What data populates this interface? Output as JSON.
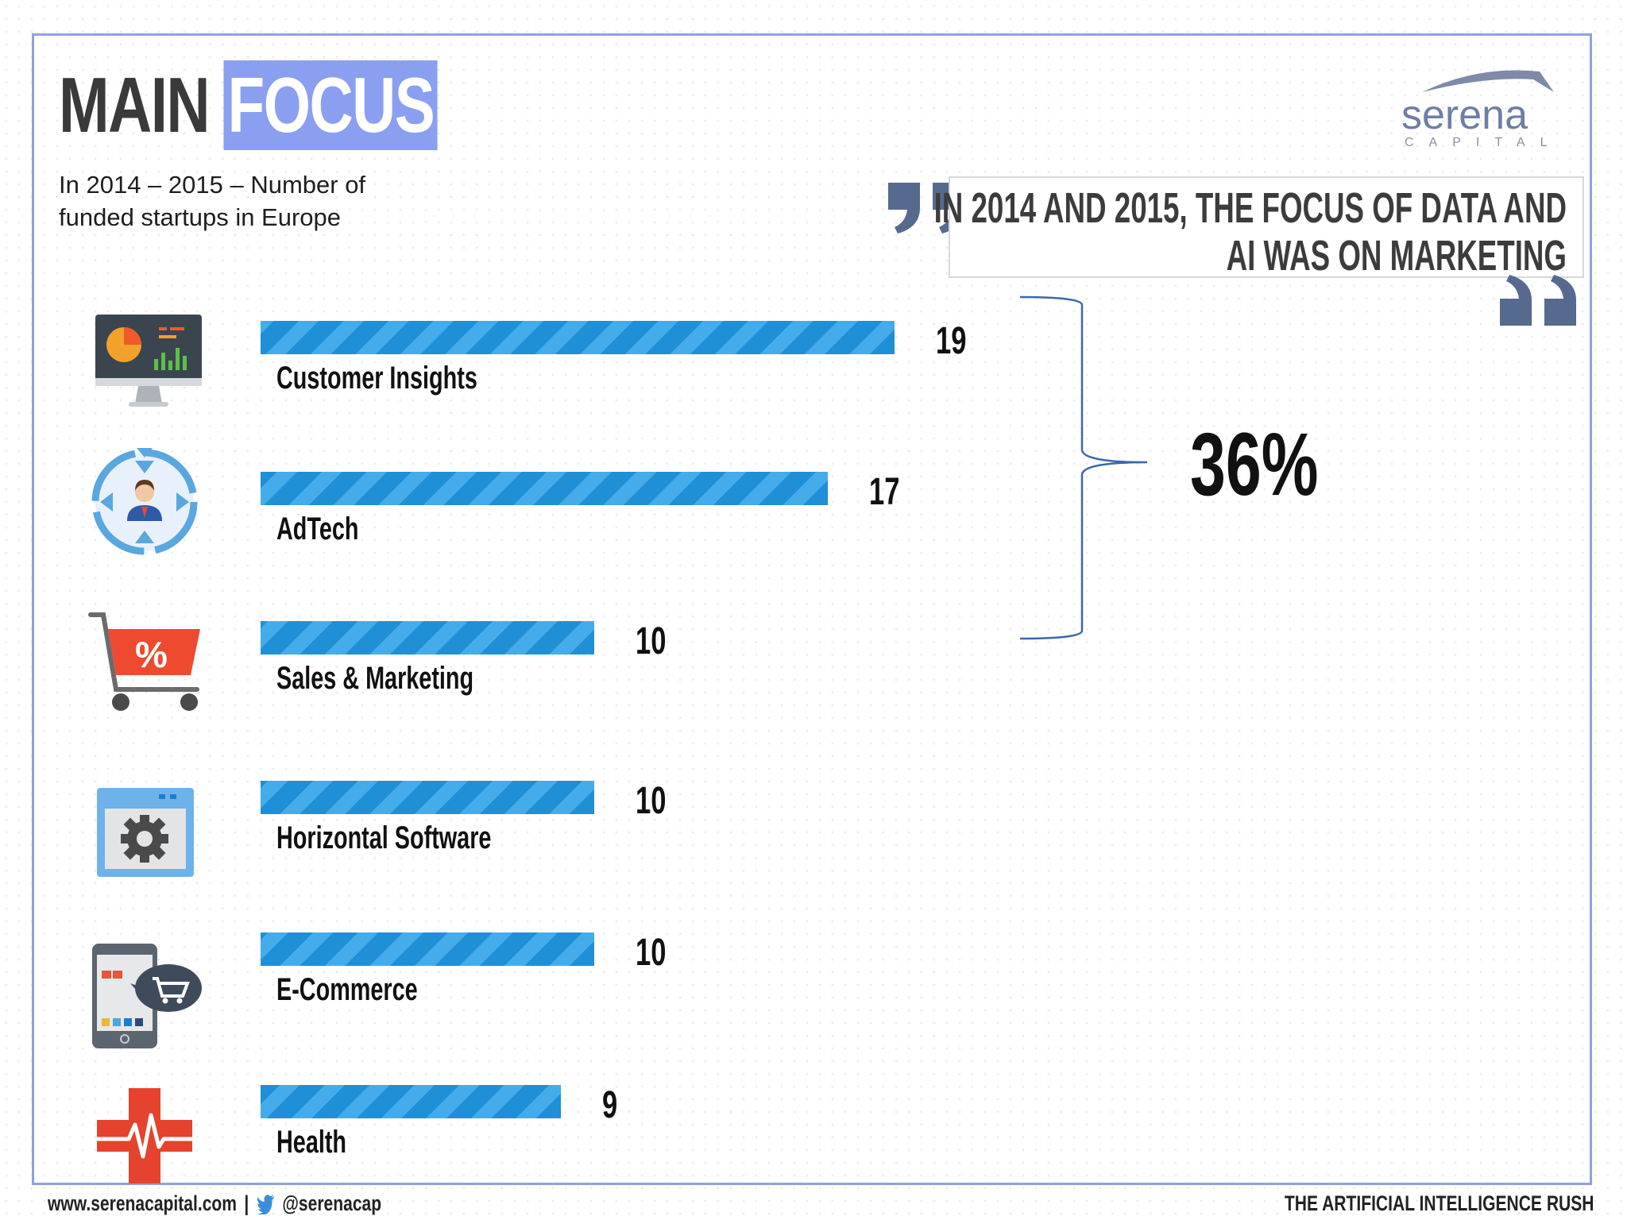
{
  "header": {
    "title_part1": "MAIN",
    "title_part2": "FOCUS",
    "subtitle": "In 2014 – 2015 – Number of funded startups in Europe"
  },
  "logo": {
    "name": "serena",
    "sub": "CAPITAL"
  },
  "quote": {
    "line1": "IN 2014 AND 2015, THE FOCUS OF DATA AND",
    "line2": "AI WAS ON MARKETING"
  },
  "summary": {
    "percent": "36%"
  },
  "chart_data": {
    "type": "bar",
    "orientation": "horizontal",
    "categories": [
      "Customer Insights",
      "AdTech",
      "Sales & Marketing",
      "Horizontal Software",
      "E-Commerce",
      "Health"
    ],
    "values": [
      19,
      17,
      10,
      10,
      10,
      9
    ],
    "icons": [
      "dashboard-monitor-icon",
      "targeting-person-icon",
      "shopping-cart-percent-icon",
      "settings-window-icon",
      "mobile-shopping-icon",
      "medical-cross-icon"
    ],
    "title": "",
    "xlabel": "",
    "ylabel": "",
    "bar_colors": [
      "#1f8fd6",
      "#44acea"
    ]
  },
  "footer": {
    "website": "www.serenacapital.com",
    "separator": "|",
    "twitter": "@serenacap",
    "right_text": "THE ARTIFICIAL INTELLIGENCE RUSH"
  },
  "colors": {
    "accent": "#8a9ff0",
    "frame": "#8fa2de",
    "quote_marks": "#56698f",
    "bracket": "#3d67a8"
  }
}
